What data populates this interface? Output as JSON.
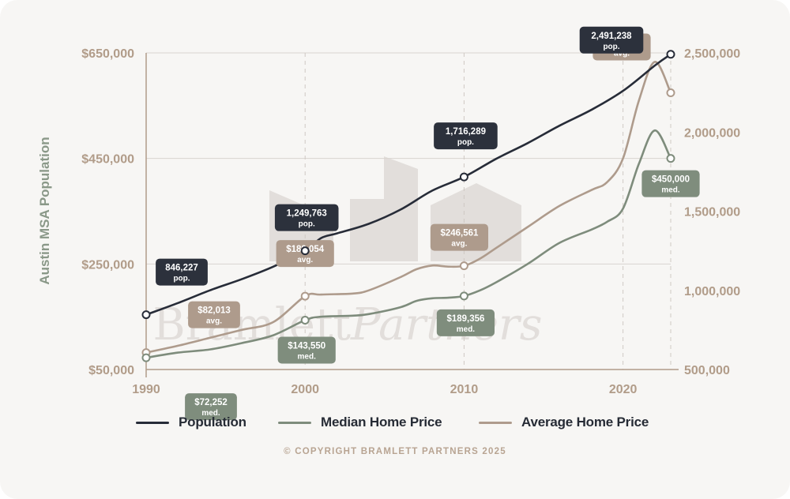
{
  "colors": {
    "population": "#272c38",
    "median": "#7e8c7c",
    "average": "#ae9b8c",
    "axis_text": "#b19c89",
    "ylabel": "#8a9888",
    "grid": "#d9d4cf",
    "watermark": "#e2dedb"
  },
  "chart_data": {
    "type": "line",
    "xlabel": "",
    "ylabel": "Austin MSA Population",
    "x": [
      1990,
      2000,
      2010,
      2020
    ],
    "xlim": [
      1990,
      2023
    ],
    "grid": true,
    "legend_position": "bottom",
    "left_axis": {
      "range": [
        50000,
        650000
      ],
      "ticks": [
        "$50,000",
        "$250,000",
        "$450,000",
        "$650,000"
      ],
      "tick_values": [
        50000,
        250000,
        450000,
        650000
      ]
    },
    "right_axis": {
      "range": [
        500000,
        2500000
      ],
      "ticks": [
        "500,000",
        "1,000,000",
        "1,500,000",
        "2,000,000",
        "2,500,000"
      ],
      "tick_values": [
        500000,
        1000000,
        1500000,
        2000000,
        2500000
      ]
    },
    "series": [
      {
        "name": "Population",
        "key": "population",
        "axis": "right",
        "points": [
          [
            1990,
            846227
          ],
          [
            1992,
            920000
          ],
          [
            1994,
            1000000
          ],
          [
            1996,
            1070000
          ],
          [
            1998,
            1150000
          ],
          [
            2000,
            1249763
          ],
          [
            2001,
            1330000
          ],
          [
            2002,
            1360000
          ],
          [
            2004,
            1420000
          ],
          [
            2006,
            1510000
          ],
          [
            2008,
            1630000
          ],
          [
            2010,
            1716289
          ],
          [
            2012,
            1830000
          ],
          [
            2014,
            1930000
          ],
          [
            2016,
            2040000
          ],
          [
            2018,
            2140000
          ],
          [
            2020,
            2260000
          ],
          [
            2022,
            2420000
          ],
          [
            2023,
            2491238
          ]
        ],
        "labels": [
          {
            "x": 1990,
            "value": "846,227",
            "unit": "pop."
          },
          {
            "x": 2000,
            "value": "1,249,763",
            "unit": "pop."
          },
          {
            "x": 2010,
            "value": "1,716,289",
            "unit": "pop."
          },
          {
            "x": 2023,
            "value": "2,491,238",
            "unit": "pop."
          }
        ]
      },
      {
        "name": "Median Home Price",
        "key": "median",
        "axis": "left",
        "points": [
          [
            1990,
            72252
          ],
          [
            1992,
            82000
          ],
          [
            1994,
            88000
          ],
          [
            1996,
            100000
          ],
          [
            1998,
            115000
          ],
          [
            2000,
            143550
          ],
          [
            2001,
            150000
          ],
          [
            2003,
            152000
          ],
          [
            2004,
            155000
          ],
          [
            2006,
            168000
          ],
          [
            2007,
            180000
          ],
          [
            2008,
            185000
          ],
          [
            2009,
            186000
          ],
          [
            2010,
            189356
          ],
          [
            2011,
            200000
          ],
          [
            2012,
            215000
          ],
          [
            2014,
            250000
          ],
          [
            2016,
            290000
          ],
          [
            2018,
            315000
          ],
          [
            2019,
            330000
          ],
          [
            2020,
            355000
          ],
          [
            2021,
            440000
          ],
          [
            2022,
            503000
          ],
          [
            2023,
            450000
          ]
        ],
        "labels": [
          {
            "x": 1990,
            "value": "$72,252",
            "unit": "med."
          },
          {
            "x": 2000,
            "value": "$143,550",
            "unit": "med."
          },
          {
            "x": 2010,
            "value": "$189,356",
            "unit": "med."
          },
          {
            "x": 2023,
            "value": "$450,000",
            "unit": "med."
          }
        ]
      },
      {
        "name": "Average Home Price",
        "key": "average",
        "axis": "left",
        "points": [
          [
            1990,
            82013
          ],
          [
            1992,
            95000
          ],
          [
            1994,
            110000
          ],
          [
            1996,
            125000
          ],
          [
            1998,
            140000
          ],
          [
            2000,
            189054
          ],
          [
            2001,
            192000
          ],
          [
            2003,
            194000
          ],
          [
            2004,
            200000
          ],
          [
            2006,
            225000
          ],
          [
            2007,
            240000
          ],
          [
            2008,
            247000
          ],
          [
            2009,
            245000
          ],
          [
            2010,
            246561
          ],
          [
            2011,
            260000
          ],
          [
            2012,
            280000
          ],
          [
            2014,
            320000
          ],
          [
            2016,
            360000
          ],
          [
            2018,
            390000
          ],
          [
            2019,
            405000
          ],
          [
            2020,
            450000
          ],
          [
            2021,
            560000
          ],
          [
            2022,
            633000
          ],
          [
            2023,
            574451
          ]
        ],
        "labels": [
          {
            "x": 1990,
            "value": "$82,013",
            "unit": "avg."
          },
          {
            "x": 2000,
            "value": "$189,054",
            "unit": "avg."
          },
          {
            "x": 2010,
            "value": "$246,561",
            "unit": "avg."
          },
          {
            "x": 2023,
            "value": "$574,451",
            "unit": "avg."
          }
        ]
      }
    ],
    "watermark": {
      "text_a": "Bramlett",
      "text_b": "Partners"
    }
  },
  "legend": [
    {
      "key": "population",
      "label": "Population"
    },
    {
      "key": "median",
      "label": "Median Home Price"
    },
    {
      "key": "average",
      "label": "Average Home Price"
    }
  ],
  "copyright": "© COPYRIGHT BRAMLETT PARTNERS 2025"
}
